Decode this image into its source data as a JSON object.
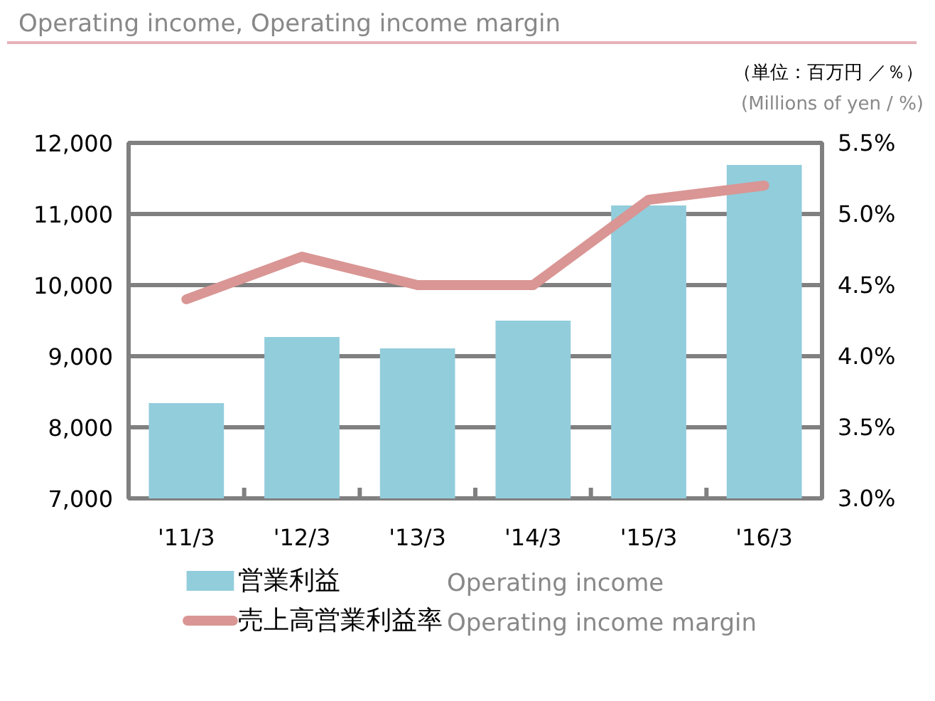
{
  "chart_data": {
    "type": "bar",
    "title": "Operating income, Operating income margin",
    "annotations": [
      "（単位：百万円 ／％）",
      "(Millions of yen / %)",
      "Operating income",
      "Operating income margin"
    ],
    "categories": [
      "'11/3",
      "'12/3",
      "'13/3",
      "'14/3",
      "'15/3",
      "'16/3"
    ],
    "series": [
      {
        "name": "営業利益",
        "color": "#92cddc",
        "values": [
          8340,
          9270,
          9110,
          9500,
          11120,
          11690
        ]
      },
      {
        "name": "売上高営業利益率",
        "type": "line",
        "axis": "y2",
        "color": "#d99694",
        "values": [
          4.4,
          4.7,
          4.5,
          4.5,
          5.1,
          5.2
        ]
      }
    ],
    "ylim": [
      7000,
      12000
    ],
    "yticks": [
      {
        "value": 7000,
        "label": "7,000"
      },
      {
        "value": 8000,
        "label": "8,000"
      },
      {
        "value": 9000,
        "label": "9,000"
      },
      {
        "value": 10000,
        "label": "10,000"
      },
      {
        "value": 11000,
        "label": "11,000"
      },
      {
        "value": 12000,
        "label": "12,000"
      }
    ],
    "y2lim": [
      3.0,
      5.5
    ],
    "y2ticks": [
      {
        "value": 3.0,
        "label": "3.0%"
      },
      {
        "value": 3.5,
        "label": "3.5%"
      },
      {
        "value": 4.0,
        "label": "4.0%"
      },
      {
        "value": 4.5,
        "label": "4.5%"
      },
      {
        "value": 5.0,
        "label": "5.0%"
      },
      {
        "value": 5.5,
        "label": "5.5%"
      }
    ],
    "grid": "y",
    "legend": "bottom",
    "marker": "none",
    "line_style": "solid"
  }
}
